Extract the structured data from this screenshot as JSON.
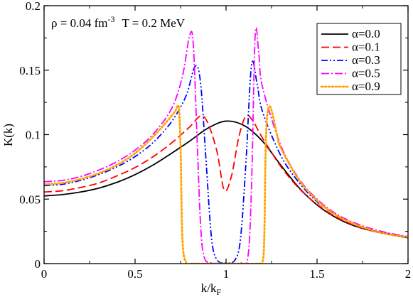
{
  "chart_data": {
    "type": "line",
    "annotation": {
      "rho_part": "ρ = 0.04 fm",
      "rho_exp": "-3",
      "temp_part": "T = 0.2 MeV"
    },
    "xlabel": {
      "main": "k/k",
      "sub": "F"
    },
    "ylabel": "K(k)",
    "xlim": [
      0,
      2
    ],
    "ylim": [
      0,
      0.2
    ],
    "x_ticks": [
      0,
      0.5,
      1,
      1.5,
      2
    ],
    "x_tick_labels": [
      "0",
      "0.5",
      "1",
      "1.5",
      "2"
    ],
    "y_ticks": [
      0,
      0.05,
      0.1,
      0.15,
      0.2
    ],
    "y_tick_labels": [
      "0",
      "0.05",
      "0.1",
      "0.15",
      "0.2"
    ],
    "grid": false,
    "legend_position": "top-right",
    "series": [
      {
        "name": "α=0.0",
        "color": "#000000",
        "dash": "solid",
        "x": [
          0,
          0.1,
          0.2,
          0.3,
          0.4,
          0.5,
          0.6,
          0.7,
          0.8,
          0.9,
          1.0,
          1.1,
          1.2,
          1.3,
          1.4,
          1.5,
          1.6,
          1.7,
          1.8,
          1.9,
          2.0
        ],
        "y": [
          0.0525,
          0.0535,
          0.0555,
          0.0585,
          0.063,
          0.069,
          0.0765,
          0.0855,
          0.095,
          0.105,
          0.1105,
          0.107,
          0.095,
          0.0765,
          0.059,
          0.0455,
          0.036,
          0.0295,
          0.0255,
          0.0225,
          0.02
        ]
      },
      {
        "name": "α=0.1",
        "color": "#ff0000",
        "dash": "long-dash",
        "x": [
          0,
          0.1,
          0.2,
          0.3,
          0.4,
          0.5,
          0.6,
          0.7,
          0.8,
          0.86,
          0.9,
          0.95,
          0.99,
          1.03,
          1.07,
          1.11,
          1.15,
          1.2,
          1.3,
          1.4,
          1.5,
          1.6,
          1.7,
          1.8,
          1.9,
          2.0
        ],
        "y": [
          0.0555,
          0.0565,
          0.059,
          0.0625,
          0.068,
          0.0745,
          0.083,
          0.0935,
          0.106,
          0.1145,
          0.109,
          0.087,
          0.057,
          0.068,
          0.098,
          0.1145,
          0.11,
          0.0975,
          0.0755,
          0.0585,
          0.046,
          0.0365,
          0.03,
          0.0255,
          0.0225,
          0.0205
        ]
      },
      {
        "name": "α=0.3",
        "color": "#0000ff",
        "dash": "dash-dot-dot",
        "x": [
          0,
          0.1,
          0.2,
          0.3,
          0.4,
          0.5,
          0.6,
          0.7,
          0.78,
          0.83,
          0.86,
          0.89,
          0.92,
          0.95,
          1.0,
          1.05,
          1.08,
          1.11,
          1.14,
          1.17,
          1.2,
          1.3,
          1.4,
          1.5,
          1.6,
          1.7,
          1.8,
          1.9,
          2.0
        ],
        "y": [
          0.0605,
          0.0615,
          0.0645,
          0.069,
          0.075,
          0.083,
          0.094,
          0.11,
          0.13,
          0.153,
          0.14,
          0.08,
          0.02,
          0.003,
          0.0005,
          0.003,
          0.02,
          0.08,
          0.154,
          0.14,
          0.118,
          0.084,
          0.063,
          0.048,
          0.038,
          0.031,
          0.026,
          0.023,
          0.0205
        ]
      },
      {
        "name": "α=0.5",
        "color": "#ff00ff",
        "dash": "dash-dot",
        "x": [
          0,
          0.1,
          0.2,
          0.3,
          0.4,
          0.5,
          0.6,
          0.7,
          0.76,
          0.8,
          0.82,
          0.84,
          0.86,
          0.88,
          0.92,
          1.0,
          1.08,
          1.12,
          1.14,
          1.16,
          1.18,
          1.2,
          1.3,
          1.4,
          1.5,
          1.6,
          1.7,
          1.8,
          1.9,
          2.0
        ],
        "y": [
          0.0635,
          0.0645,
          0.0675,
          0.0725,
          0.079,
          0.088,
          0.1005,
          0.12,
          0.145,
          0.177,
          0.17,
          0.1,
          0.03,
          0.005,
          0.0005,
          0.0,
          0.0005,
          0.005,
          0.06,
          0.177,
          0.163,
          0.137,
          0.092,
          0.066,
          0.05,
          0.039,
          0.032,
          0.027,
          0.0235,
          0.021
        ]
      },
      {
        "name": "α=0.9",
        "color": "#ffa500",
        "dash": "dotted",
        "x": [
          0,
          0.1,
          0.2,
          0.3,
          0.4,
          0.5,
          0.6,
          0.68,
          0.72,
          0.74,
          0.75,
          0.76,
          0.78,
          0.82,
          1.0,
          1.18,
          1.2,
          1.21,
          1.22,
          1.24,
          1.28,
          1.3,
          1.4,
          1.5,
          1.6,
          1.7,
          1.8,
          1.9,
          2.0
        ],
        "y": [
          0.0615,
          0.0625,
          0.0655,
          0.07,
          0.0765,
          0.0855,
          0.0985,
          0.111,
          0.118,
          0.121,
          0.09,
          0.02,
          0.001,
          0.0,
          0.0,
          0.0,
          0.001,
          0.02,
          0.1,
          0.122,
          0.1,
          0.09,
          0.065,
          0.049,
          0.038,
          0.031,
          0.026,
          0.0225,
          0.0205
        ]
      }
    ]
  }
}
